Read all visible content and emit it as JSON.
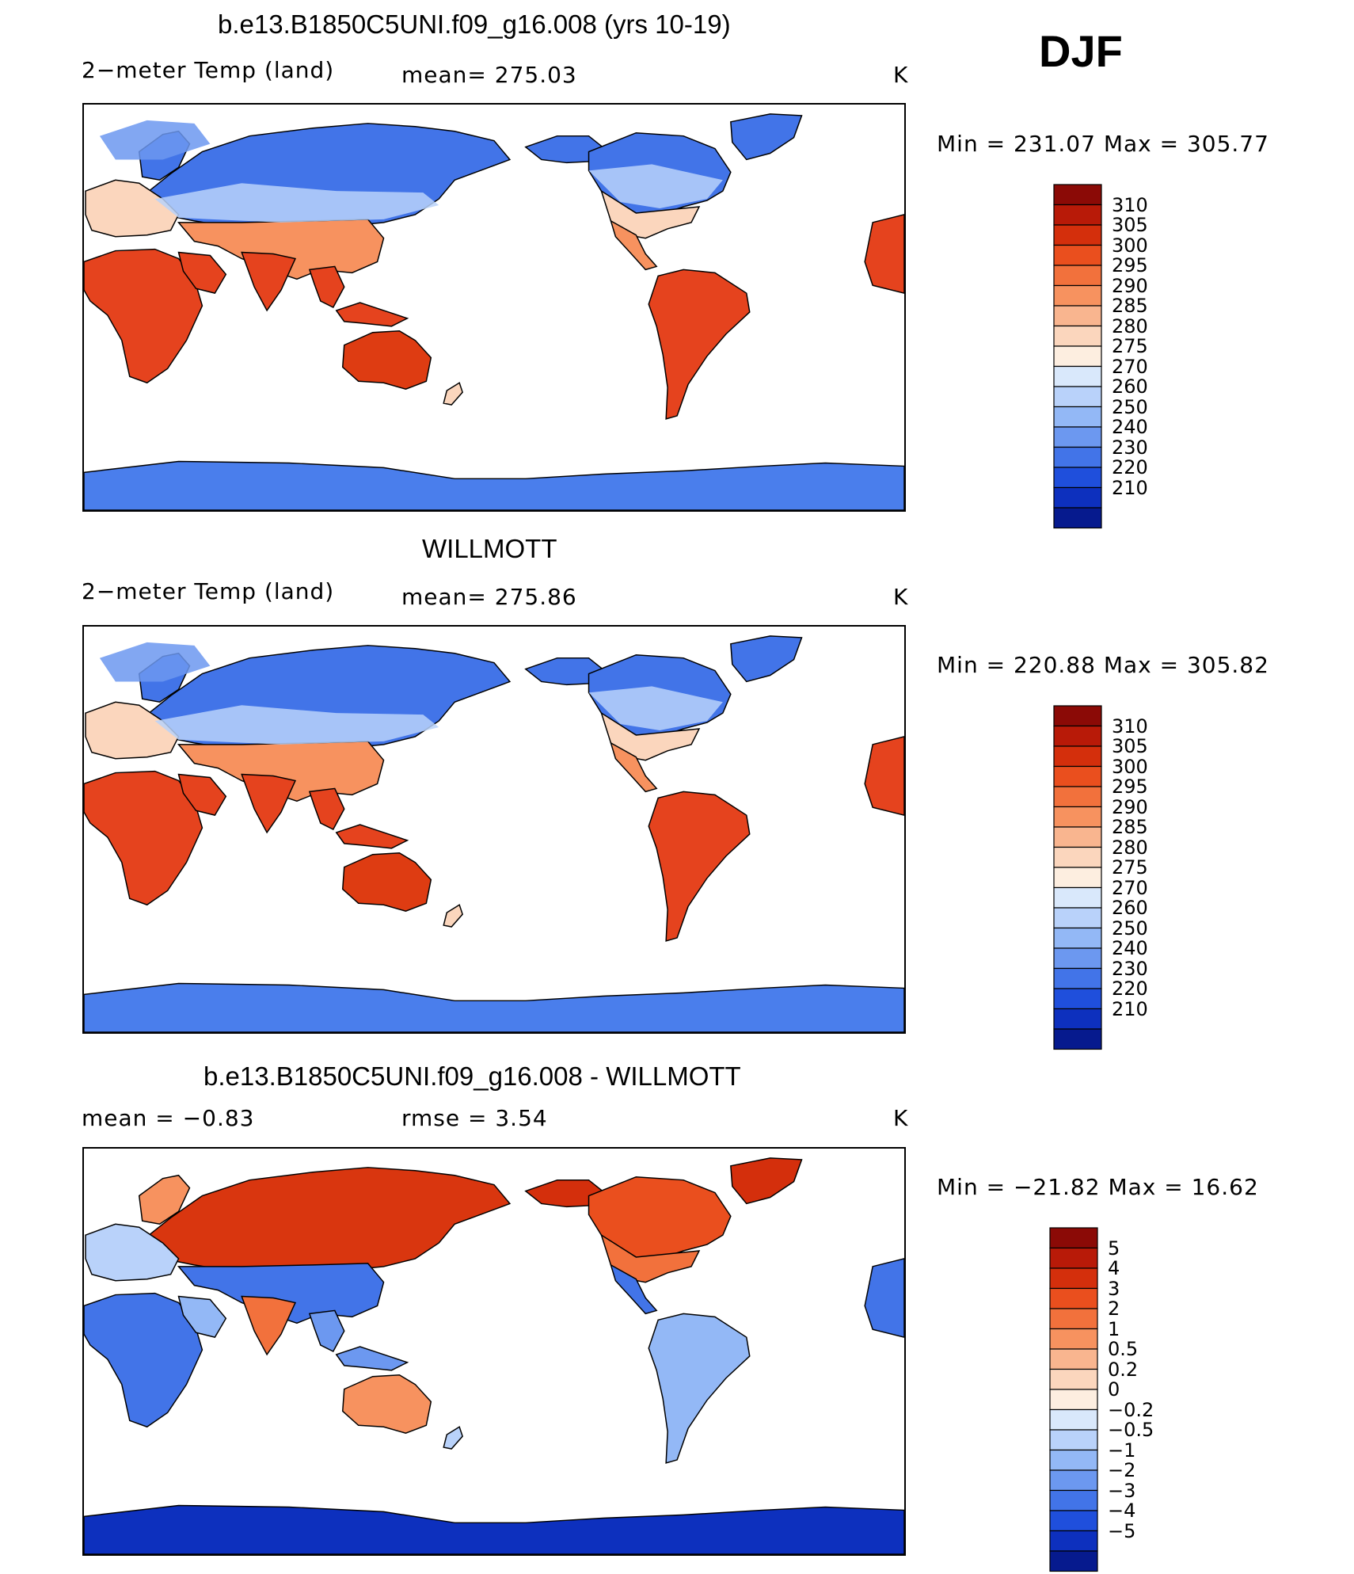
{
  "season": "DJF",
  "panels": [
    {
      "id": "model",
      "title": "b.e13.B1850C5UNI.f09_g16.008 (yrs 10-19)",
      "left_label": "2−meter Temp (land)",
      "middle_label": "mean=  275.03",
      "units": "K",
      "minmax": "Min  =  231.07  Max  =  305.77",
      "colorbar_ticks": [
        "310",
        "305",
        "300",
        "295",
        "290",
        "285",
        "280",
        "275",
        "270",
        "260",
        "250",
        "240",
        "230",
        "220",
        "210"
      ],
      "mode": "abs",
      "tropic": "#e5431e",
      "aus": "#de3c12"
    },
    {
      "id": "obs",
      "title": "WILLMOTT",
      "left_label": "2−meter Temp (land)",
      "middle_label": "mean=  275.86",
      "units": "K",
      "minmax": "Min  =  220.88  Max  =  305.82",
      "colorbar_ticks": [
        "310",
        "305",
        "300",
        "295",
        "290",
        "285",
        "280",
        "275",
        "270",
        "260",
        "250",
        "240",
        "230",
        "220",
        "210"
      ],
      "mode": "abs",
      "tropic": "#e5431e",
      "aus": "#de3c12"
    },
    {
      "id": "diff",
      "title": "b.e13.B1850C5UNI.f09_g16.008 - WILLMOTT",
      "left_label": "mean  =    −0.83",
      "middle_label": "rmse  =     3.54",
      "units": "K",
      "minmax": "Min  =  −21.82  Max  =    16.62",
      "colorbar_ticks": [
        "5",
        "4",
        "3",
        "2",
        "1",
        "0.5",
        "0.2",
        "0",
        "−0.2",
        "−0.5",
        "−1",
        "−2",
        "−3",
        "−4",
        "−5"
      ],
      "mode": "diff"
    }
  ],
  "colorbar_colors": [
    "#8b0a06",
    "#b81a08",
    "#d42f0c",
    "#ea4f1e",
    "#f2713c",
    "#f7925f",
    "#f9b58f",
    "#fbd6bd",
    "#fdeee0",
    "#d9e8fb",
    "#b9d2fa",
    "#93b8f6",
    "#6c98f0",
    "#4274e8",
    "#1f4fdc",
    "#0d30be",
    "#061a8e"
  ]
}
